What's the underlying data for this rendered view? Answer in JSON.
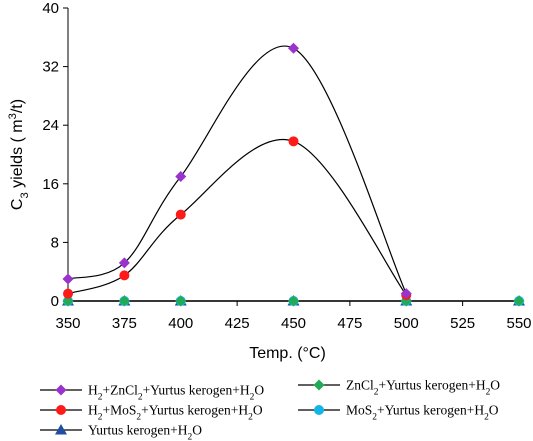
{
  "chart_data": {
    "type": "line",
    "xlabel": "Temp. (°C)",
    "ylabel_parts": [
      "C",
      "3",
      " yields ( m",
      "3",
      "/t)"
    ],
    "x": [
      350,
      375,
      400,
      450,
      500,
      550
    ],
    "xticks": [
      350,
      375,
      400,
      425,
      450,
      475,
      500,
      525,
      550
    ],
    "yticks": [
      0,
      8,
      16,
      24,
      32,
      40
    ],
    "xlim": [
      350,
      550
    ],
    "ylim": [
      0,
      40
    ],
    "grid": false,
    "legend_position": "bottom",
    "series": [
      {
        "name": "H2+ZnCl2+Yurtus kerogen+H2O",
        "name_parts": [
          [
            "H",
            "n"
          ],
          [
            "2",
            "sub"
          ],
          [
            "+ZnCl",
            "n"
          ],
          [
            "2",
            "sub"
          ],
          [
            "+Yurtus kerogen+H",
            "n"
          ],
          [
            "2",
            "sub"
          ],
          [
            "O",
            "n"
          ]
        ],
        "color": "#9933cc",
        "marker": "diamond",
        "x": [
          350,
          375,
          400,
          450,
          500
        ],
        "values": [
          3.0,
          5.2,
          17.0,
          34.5,
          1.0
        ]
      },
      {
        "name": "ZnCl2+Yurtus kerogen+H2O",
        "name_parts": [
          [
            "ZnCl",
            "n"
          ],
          [
            "2",
            "sub"
          ],
          [
            "+Yurtus kerogen+H",
            "n"
          ],
          [
            "2",
            "sub"
          ],
          [
            "O",
            "n"
          ]
        ],
        "color": "#22aa55",
        "marker": "diamond",
        "x": [
          350,
          375,
          400,
          450,
          500,
          550
        ],
        "values": [
          0,
          0,
          0,
          0,
          0,
          0
        ]
      },
      {
        "name": "H2+MoS2+Yurtus kerogen+H2O",
        "name_parts": [
          [
            "H",
            "n"
          ],
          [
            "2",
            "sub"
          ],
          [
            "+MoS",
            "n"
          ],
          [
            "2",
            "sub"
          ],
          [
            "+Yurtus kerogen+H",
            "n"
          ],
          [
            "2",
            "sub"
          ],
          [
            "O",
            "n"
          ]
        ],
        "color": "#ff1a1a",
        "marker": "circle",
        "x": [
          350,
          375,
          400,
          450,
          500
        ],
        "values": [
          1.0,
          3.5,
          11.8,
          21.8,
          0.8
        ]
      },
      {
        "name": "MoS2+Yurtus kerogen+H2O",
        "name_parts": [
          [
            "MoS",
            "n"
          ],
          [
            "2",
            "sub"
          ],
          [
            "+Yurtus kerogen+H",
            "n"
          ],
          [
            "2",
            "sub"
          ],
          [
            "O",
            "n"
          ]
        ],
        "color": "#12b5e5",
        "marker": "circle",
        "x": [
          350,
          375,
          400,
          450,
          500,
          550
        ],
        "values": [
          0,
          0,
          0,
          0,
          0,
          0
        ]
      },
      {
        "name": "Yurtus kerogen+H2O",
        "name_parts": [
          [
            "Yurtus kerogen+H",
            "n"
          ],
          [
            "2",
            "sub"
          ],
          [
            "O",
            "n"
          ]
        ],
        "color": "#1f4fa0",
        "marker": "triangle",
        "x": [
          350,
          375,
          400,
          450,
          500,
          550
        ],
        "values": [
          0,
          0,
          0,
          0,
          0,
          0
        ]
      }
    ]
  }
}
